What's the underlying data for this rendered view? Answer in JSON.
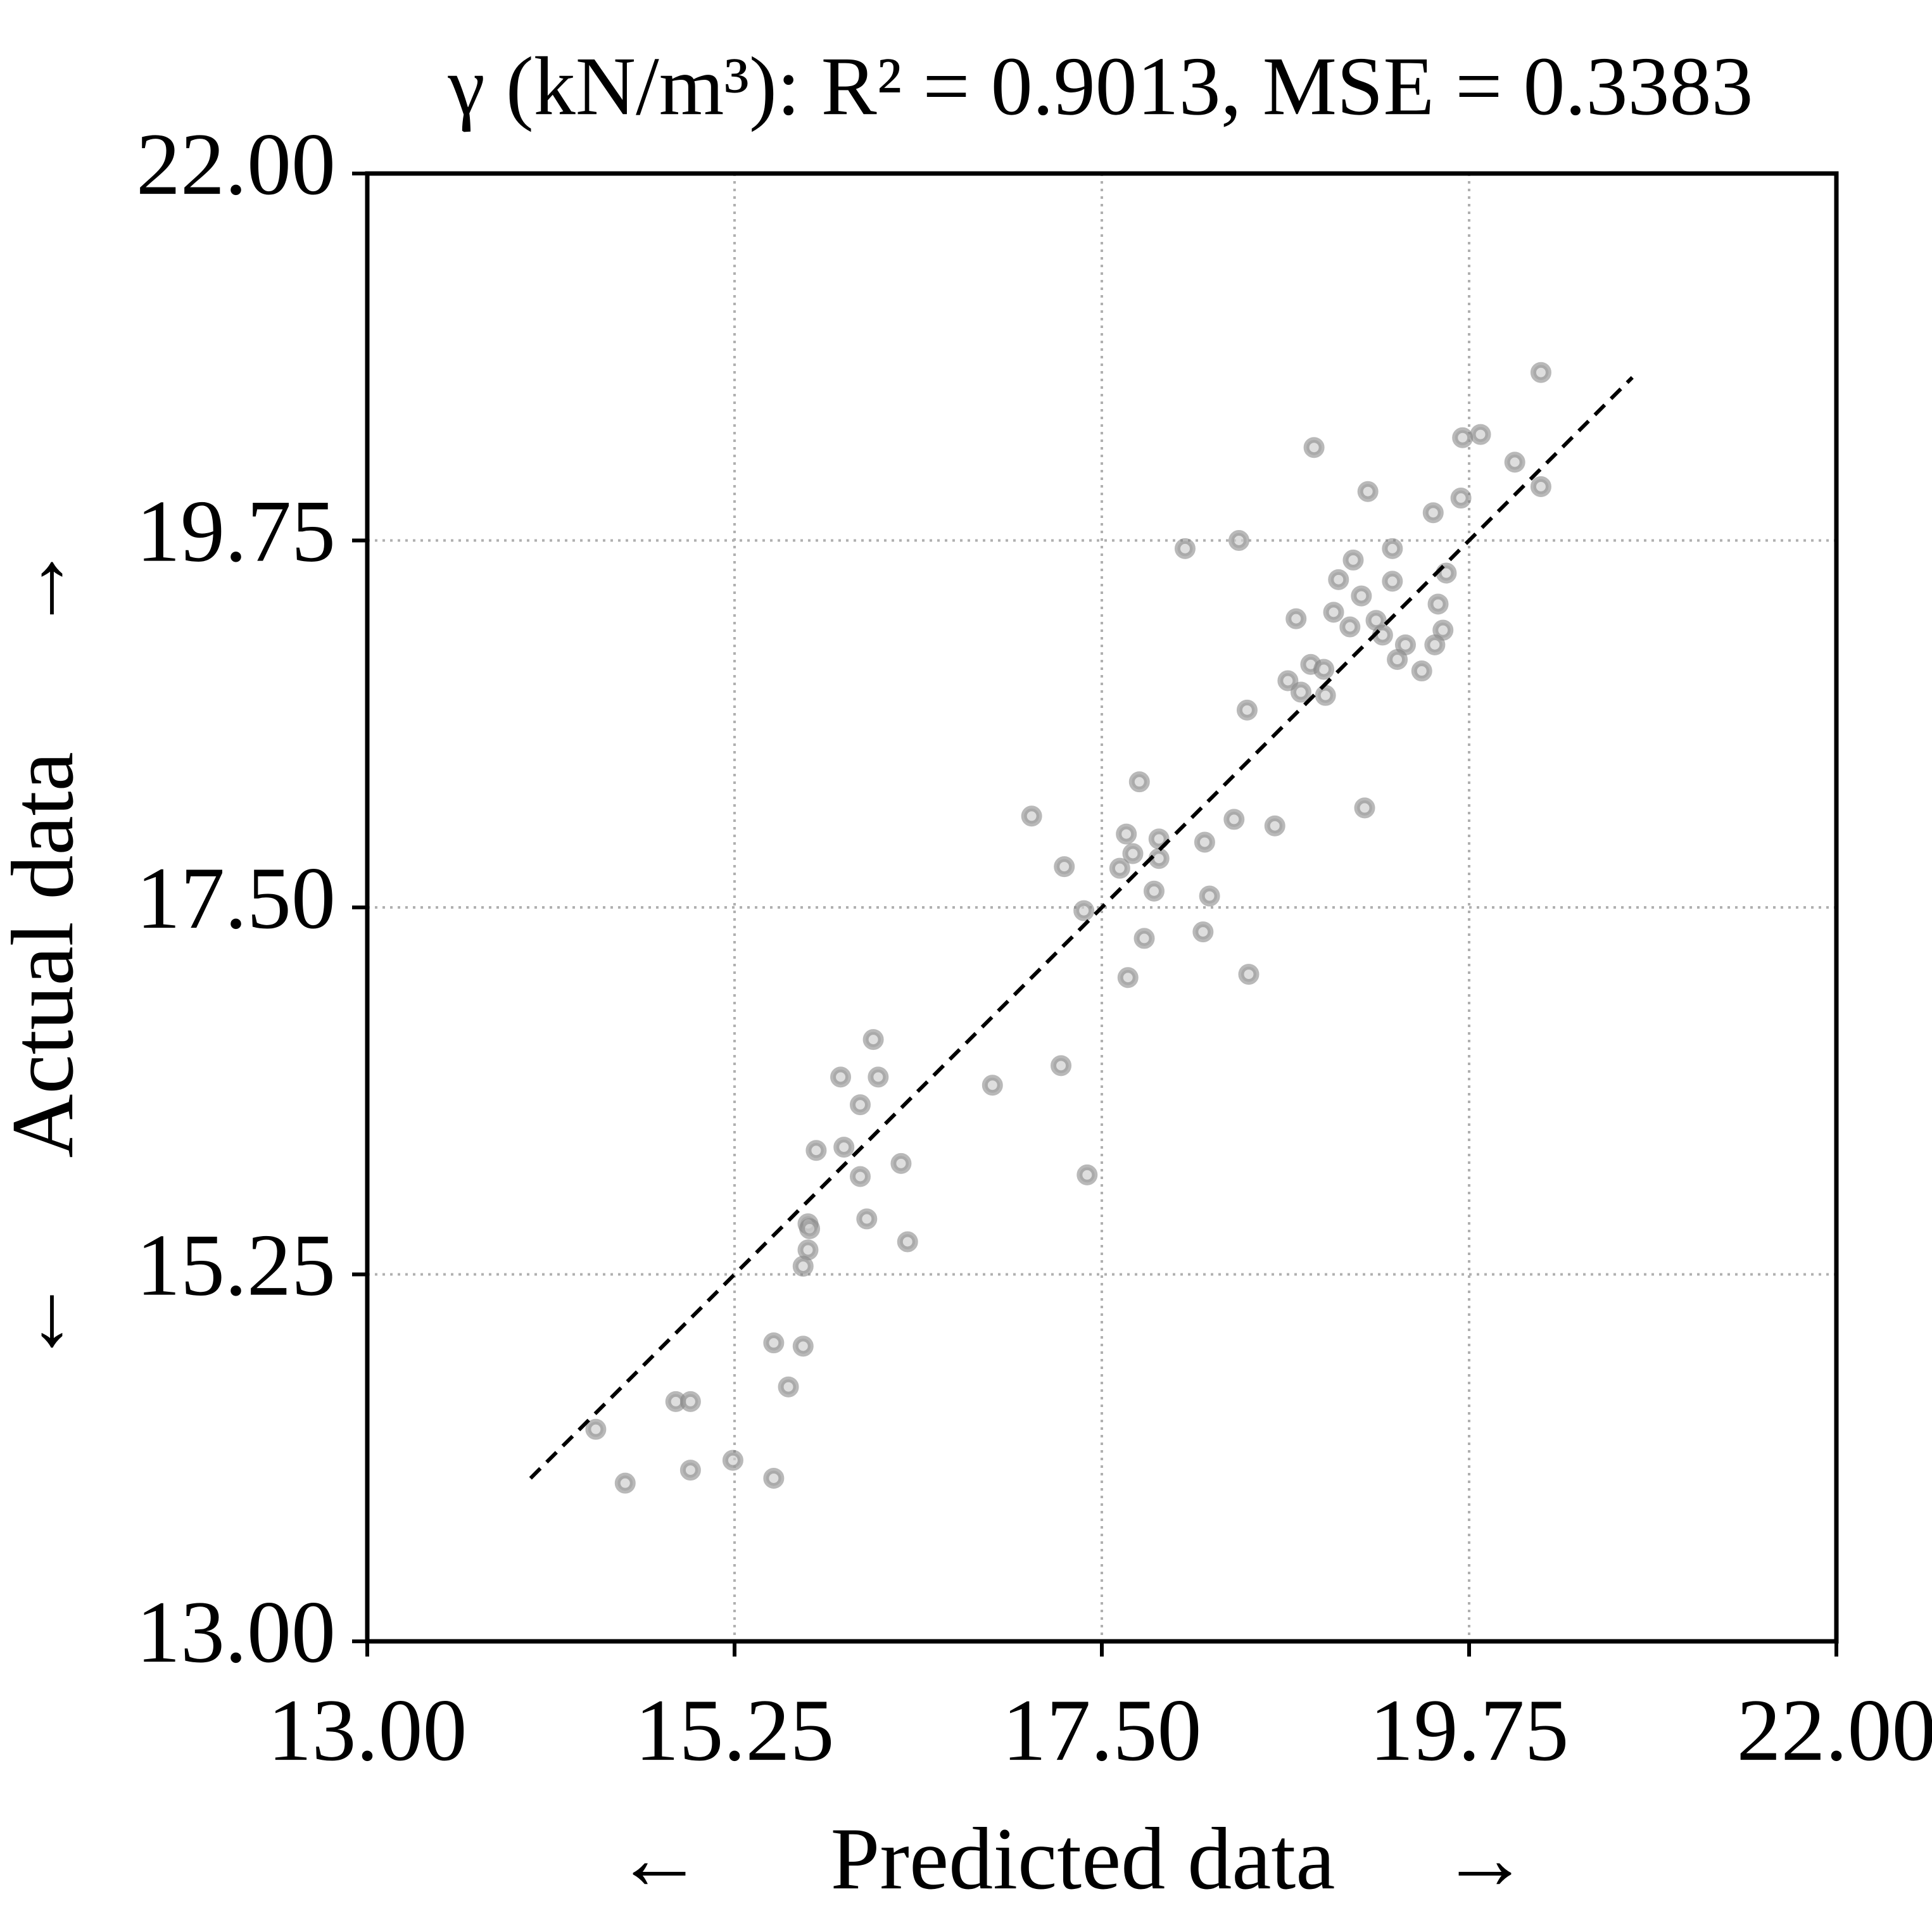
{
  "chart_data": {
    "type": "scatter",
    "title": "γ (kN/m³): R² = 0.9013, MSE = 0.3383",
    "x_label": "Predicted data",
    "y_label": "Actual data",
    "x_arrows": [
      "←",
      "→"
    ],
    "y_arrows": [
      "↑",
      "↓"
    ],
    "color": "#808080",
    "grid": true,
    "xlim": [
      13,
      22
    ],
    "ylim": [
      13,
      22
    ],
    "xticks": [
      {
        "value": 13,
        "label": "13.00"
      },
      {
        "value": 15.25,
        "label": "15.25"
      },
      {
        "value": 17.5,
        "label": "17.50"
      },
      {
        "value": 19.75,
        "label": "19.75"
      },
      {
        "value": 22,
        "label": "22.00"
      }
    ],
    "yticks": [
      {
        "value": 13,
        "label": "13.00"
      },
      {
        "value": 15.25,
        "label": "15.25"
      },
      {
        "value": 17.5,
        "label": "17.50"
      },
      {
        "value": 19.75,
        "label": "19.75"
      },
      {
        "value": 22,
        "label": "22.00"
      }
    ],
    "fit_line": {
      "x": [
        14,
        20.75
      ],
      "y": [
        14,
        20.75
      ]
    },
    "x": [
      20.19,
      18.8,
      19.71,
      19.82,
      20.03,
      20.19,
      19.7,
      19.13,
      19.53,
      18.01,
      18.34,
      19.28,
      19.04,
      18.95,
      19.61,
      19.28,
      19.09,
      18.92,
      19.56,
      18.69,
      19.02,
      19.18,
      19.22,
      19.36,
      19.59,
      19.54,
      19.31,
      19.46,
      18.78,
      18.86,
      18.64,
      18.72,
      18.87,
      18.39,
      19.11,
      17.73,
      17.07,
      18.31,
      18.56,
      17.65,
      17.85,
      18.13,
      17.27,
      17.69,
      17.61,
      17.85,
      17.82,
      18.16,
      17.39,
      18.12,
      17.76,
      17.66,
      18.4,
      16.1,
      15.9,
      16.13,
      16.02,
      16.83,
      17.25,
      15.75,
      15.92,
      16.27,
      16.02,
      17.41,
      16.06,
      15.7,
      15.71,
      16.31,
      15.7,
      15.67,
      15.49,
      15.67,
      15.58,
      14.89,
      14.98,
      14.4,
      15.24,
      14.98,
      15.49,
      14.58
    ],
    "values": [
      20.78,
      20.32,
      20.38,
      20.4,
      20.23,
      20.08,
      20.01,
      20.05,
      19.92,
      19.7,
      19.75,
      19.7,
      19.63,
      19.51,
      19.55,
      19.5,
      19.41,
      19.31,
      19.36,
      19.27,
      19.22,
      19.26,
      19.17,
      19.11,
      19.2,
      19.11,
      19.02,
      18.95,
      18.99,
      18.96,
      18.89,
      18.82,
      18.8,
      18.71,
      18.11,
      18.27,
      18.06,
      18.04,
      18.0,
      17.95,
      17.92,
      17.9,
      17.75,
      17.83,
      17.74,
      17.8,
      17.6,
      17.57,
      17.48,
      17.35,
      17.31,
      17.07,
      17.09,
      16.69,
      16.46,
      16.46,
      16.29,
      16.41,
      16.53,
      16.01,
      16.03,
      15.93,
      15.85,
      15.86,
      15.59,
      15.56,
      15.53,
      15.45,
      15.4,
      15.3,
      14.83,
      14.81,
      14.56,
      14.47,
      14.47,
      14.3,
      14.11,
      14.05,
      14.0,
      13.97
    ]
  }
}
